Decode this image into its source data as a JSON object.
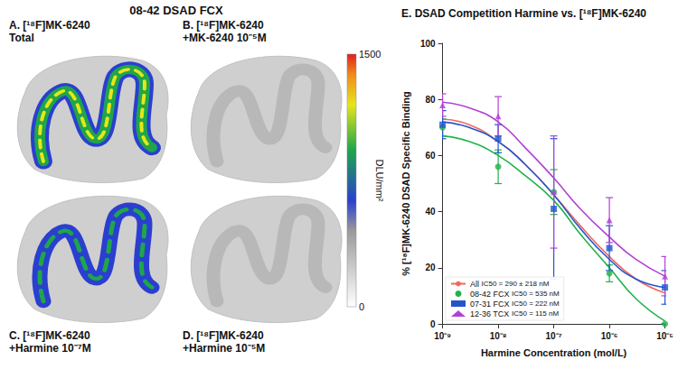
{
  "figure": {
    "title": "08-42 DSAD FCX",
    "panels": [
      {
        "label": [
          "A. [¹⁸F]MK-6240",
          "Total"
        ]
      },
      {
        "label": [
          "B. [¹⁸F]MK-6240",
          "+MK-6240 10⁻⁵M"
        ]
      },
      {
        "label": [
          "C. [¹⁸F]MK-6240",
          "+Harmine 10⁻⁷M"
        ]
      },
      {
        "label": [
          "D. [¹⁸F]MK-6240",
          "+Harmine 10⁻⁵M"
        ]
      }
    ],
    "colorbar": {
      "label": "DLU/mm²",
      "range": [
        0,
        1500
      ],
      "ticks": [
        0,
        1500
      ]
    }
  },
  "chart_data": {
    "type": "line",
    "title": "E. DSAD Competition Harmine vs. [¹⁸F]MK-6240",
    "x_label": "Harmine Concentration (mol/L)",
    "y_label": "% [¹⁸F]MK-6240 DSAD Specific Binding",
    "log": "x",
    "grid": false,
    "legend": "bottom-left",
    "xlim": [
      1e-09,
      1e-05
    ],
    "xticks": [
      {
        "value": 1e-09,
        "label": "10⁻⁹"
      },
      {
        "value": 1e-08,
        "label": "10⁻⁸"
      },
      {
        "value": 1e-07,
        "label": "10⁻⁷"
      },
      {
        "value": 1e-06,
        "label": "10⁻⁶"
      },
      {
        "value": 1e-05,
        "label": "10⁻⁵"
      }
    ],
    "ylim": [
      0,
      100
    ],
    "yticks": [
      0,
      20,
      40,
      60,
      80,
      100
    ],
    "x": [
      1e-09,
      1e-08,
      1e-07,
      1e-06,
      1e-05
    ],
    "fit_x": [
      1e-09,
      3e-09,
      1e-08,
      3e-08,
      1e-07,
      3e-07,
      1e-06,
      3e-06,
      1e-05
    ],
    "series": [
      {
        "name": "All",
        "ic50": "IC50 = 290 ± 218 nM",
        "color": "#f0695f",
        "marker": "none",
        "fit": [
          73,
          71,
          65,
          57,
          46,
          35,
          24,
          16,
          11
        ]
      },
      {
        "name": "08-42 FCX",
        "ic50": "IC50 = 535 nM",
        "color": "#22b14c",
        "marker": "circle",
        "values": [
          70,
          56,
          47,
          18,
          0
        ],
        "errors": [
          3,
          6,
          8,
          3,
          0
        ],
        "fit": [
          67,
          65,
          60,
          53,
          44,
          32,
          20,
          9,
          1
        ]
      },
      {
        "name": "07-31 FCX",
        "ic50": "IC50 = 222 nM",
        "color": "#2255cc",
        "marker": "rect",
        "values": [
          71,
          66,
          41,
          27,
          13
        ],
        "errors": [
          5,
          5,
          25,
          8,
          6
        ],
        "fit": [
          72,
          70,
          65,
          57,
          46,
          34,
          23,
          16,
          13
        ]
      },
      {
        "name": "12-36 TCX",
        "ic50": "IC50 = 115 nM",
        "color": "#b340d6",
        "marker": "triangle",
        "values": [
          78,
          74,
          47,
          37,
          17
        ],
        "errors": [
          4,
          7,
          20,
          8,
          7
        ],
        "fit": [
          79,
          77,
          72,
          63,
          52,
          41,
          31,
          23,
          17
        ]
      }
    ]
  }
}
